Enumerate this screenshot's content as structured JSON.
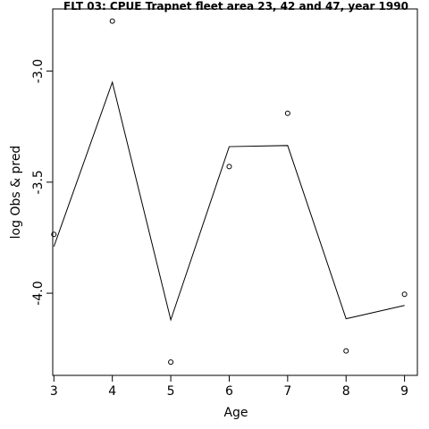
{
  "chart_data": {
    "type": "line",
    "title": "FLT 03: CPUE Trapnet fleet area 23, 42 and 47, year 1990",
    "xlabel": "Age",
    "ylabel": "log Obs & pred",
    "x": [
      3,
      4,
      5,
      6,
      7,
      8,
      9
    ],
    "xlim": [
      2.98,
      9.22
    ],
    "ylim": [
      -4.37,
      -2.72
    ],
    "xticks": [
      "3",
      "4",
      "5",
      "6",
      "7",
      "8",
      "9"
    ],
    "yticks": [
      {
        "value": -3.0,
        "label": "-3.0"
      },
      {
        "value": -3.5,
        "label": "-3.5"
      },
      {
        "value": -4.0,
        "label": "-4.0"
      }
    ],
    "series": [
      {
        "kind": "line",
        "values": [
          -3.79,
          -3.05,
          -4.12,
          -3.34,
          -3.335,
          -4.115,
          -4.055
        ]
      },
      {
        "kind": "points",
        "values": [
          -3.735,
          -2.775,
          -4.31,
          -3.43,
          -3.19,
          -4.26,
          -4.005
        ]
      }
    ],
    "grid": false,
    "legend": "none"
  }
}
